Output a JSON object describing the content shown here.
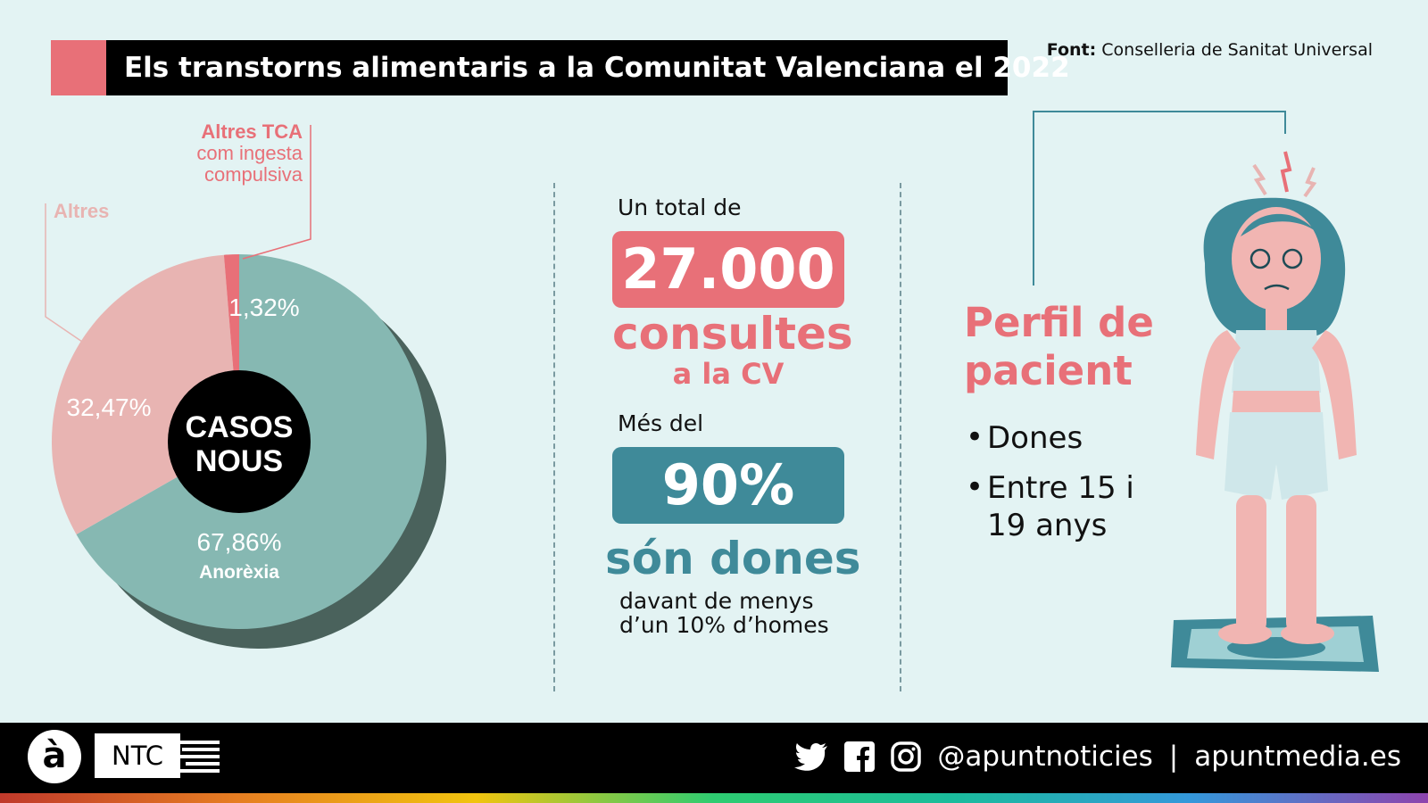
{
  "header": {
    "title": "Els transtorns alimentaris a la Comunitat Valenciana el 2022",
    "source_label": "Font:",
    "source_value": "Conselleria de Sanitat Universal"
  },
  "chart_data": {
    "type": "pie",
    "center_label_1": "CASOS",
    "center_label_2": "NOUS",
    "slices": [
      {
        "label": "Anorèxia",
        "value": 67.86,
        "value_text": "67,86%",
        "color": "#86b8b2"
      },
      {
        "label": "Altres",
        "value": 32.47,
        "value_text": "32,47%",
        "color": "#e8b4b2"
      },
      {
        "label": "Altres TCA com ingesta compulsiva",
        "value": 1.32,
        "value_text": "1,32%",
        "color": "#e87078"
      }
    ],
    "callouts": {
      "altres": "Altres",
      "tca_1": "Altres TCA",
      "tca_2": "com ingesta",
      "tca_3": "compulsiva",
      "anorexia": "Anorèxia"
    }
  },
  "stats": {
    "total_intro": "Un total de",
    "total_value": "27.000",
    "total_unit": "consultes",
    "total_place": "a la CV",
    "women_intro": "Més del",
    "women_value": "90%",
    "women_unit": "són dones",
    "women_note_1": "davant de menys",
    "women_note_2": "d’un 10% d’homes"
  },
  "profile": {
    "title_1": "Perfil de",
    "title_2": "pacient",
    "bullets": [
      "Dones",
      "Entre 15 i 19 anys"
    ]
  },
  "footer": {
    "logo_letter": "à",
    "brand": "NTC",
    "handle": "@apuntnoticies",
    "separator": "|",
    "website": "apuntmedia.es"
  },
  "colors": {
    "accent_pink": "#e87078",
    "teal": "#3f8a99",
    "light_pink": "#e8b4b2",
    "light_teal": "#86b8b2",
    "background": "#e3f3f3"
  }
}
